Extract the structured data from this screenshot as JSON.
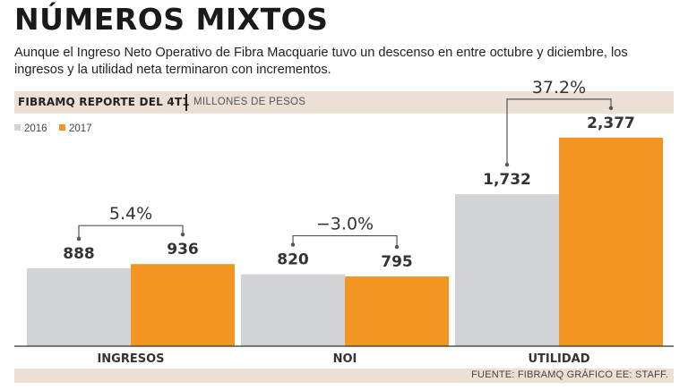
{
  "title": "NÚMEROS MIXTOS",
  "subtitle": "Aunque el Ingreso Neto Operativo de Fibra Macquarie tuvo un descenso en entre octubre y diciembre, los ingresos y la utilidad neta terminaron con incrementos.",
  "header": {
    "report": "FIBRAMQ REPORTE DEL 4T1",
    "unit": "MILLONES DE PESOS"
  },
  "footer": "FUENTE: FIBRAMQ GRÁFICO EE: STAFF.",
  "colors": {
    "s2016": "#d2d3d5",
    "s2017": "#f39521",
    "text": "#333333",
    "bracket": "#555555"
  },
  "chart_data": {
    "type": "bar",
    "title": "FIBRAMQ REPORTE DEL 4T1",
    "ylabel": "MILLONES DE PESOS",
    "categories": [
      "INGRESOS",
      "NOI",
      "UTILIDAD"
    ],
    "series": [
      {
        "name": "2016",
        "values": [
          888,
          820,
          1732
        ],
        "labels": [
          "888",
          "820",
          "1,732"
        ]
      },
      {
        "name": "2017",
        "values": [
          936,
          795,
          2377
        ],
        "labels": [
          "936",
          "795",
          "2,377"
        ]
      }
    ],
    "changes": [
      "5.4%",
      "−3.0%",
      "37.2%"
    ],
    "ylim": [
      0,
      2600
    ]
  }
}
